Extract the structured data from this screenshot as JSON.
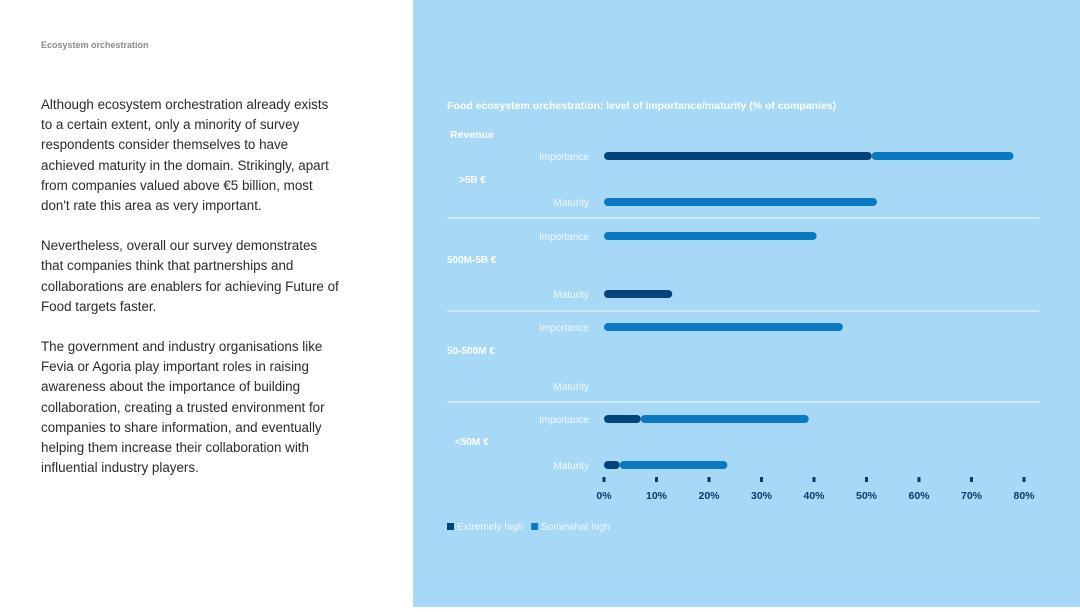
{
  "section_label": "Ecosystem orchestration",
  "paragraphs": [
    "Although ecosystem orchestration already exists to a certain extent, only a minority of survey respondents consider themselves to have achieved maturity in the domain. Strikingly, apart from companies valued above €5 billion, most don't rate this area as very important.",
    "Nevertheless, overall our survey demonstrates that companies think that partnerships and collaborations are enablers for achieving Future of Food targets faster.",
    "The government and industry organisations like Fevia or Agoria play important roles in raising awareness about the importance of building collaboration, creating a trusted environment for companies to share information, and eventually helping them increase their collaboration with influential industry players."
  ],
  "colors": {
    "background": "#a7d8f5",
    "extremely_high": "#03457a",
    "somewhat_high": "#0a79c2",
    "text": "#ffffff",
    "axis": "#0b3a66"
  },
  "chart_data": {
    "type": "bar",
    "orientation": "horizontal",
    "stacked": true,
    "title": "Food ecosystem orchestration: level of importance/maturity (% of companies)",
    "group_axis_label": "Revenue",
    "groups": [
      {
        "name": ">5B €",
        "bars": [
          {
            "label": "Importance",
            "extremely_high": 51,
            "somewhat_high": 27
          },
          {
            "label": "Maturity",
            "extremely_high": 0,
            "somewhat_high": 52
          }
        ]
      },
      {
        "name": "500M-5B €",
        "bars": [
          {
            "label": "Importance",
            "extremely_high": 0,
            "somewhat_high": 40.5
          },
          {
            "label": "Maturity",
            "extremely_high": 13,
            "somewhat_high": 0
          }
        ]
      },
      {
        "name": "50-500M €",
        "bars": [
          {
            "label": "Importance",
            "extremely_high": 0,
            "somewhat_high": 45.5
          },
          {
            "label": "Maturity",
            "extremely_high": 0,
            "somewhat_high": 0
          }
        ]
      },
      {
        "name": "<50M €",
        "bars": [
          {
            "label": "Importance",
            "extremely_high": 7,
            "somewhat_high": 32
          },
          {
            "label": "Maturity",
            "extremely_high": 3,
            "somewhat_high": 20.5
          }
        ]
      }
    ],
    "series": [
      {
        "key": "extremely_high",
        "name": "Extremely high"
      },
      {
        "key": "somewhat_high",
        "name": "Somewhat high"
      }
    ],
    "xlim": [
      0,
      80
    ],
    "ticks": [
      0,
      10,
      20,
      30,
      40,
      50,
      60,
      70,
      80
    ],
    "tick_labels": [
      "0%",
      "10%",
      "20%",
      "30%",
      "40%",
      "50%",
      "60%",
      "70%",
      "80%"
    ],
    "legend_position": "bottom-left"
  }
}
